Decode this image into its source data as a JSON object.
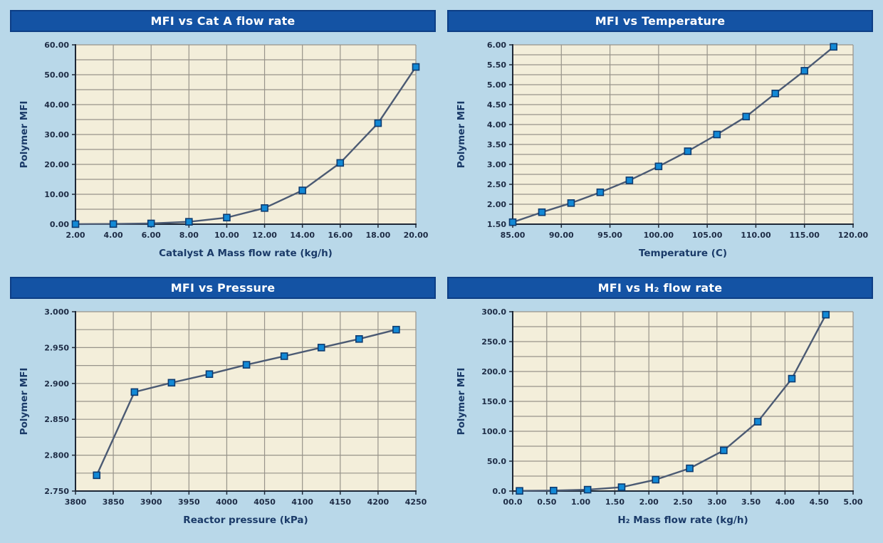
{
  "colors": {
    "page_bg": "#b9d8e9",
    "titlebar_bg": "#1453a4",
    "titlebar_border": "#0d3e85",
    "titlebar_text": "#ffffff",
    "plot_bg": "#f3eeda",
    "grid": "#97938a",
    "axis": "#1d2736",
    "line": "#4b5a73",
    "marker_fill": "#1289d6",
    "marker_stroke": "#0d3b70",
    "tick_text": "#1e2c45",
    "label_text": "#1a3a68"
  },
  "chart_data": [
    {
      "type": "line",
      "title": "MFI vs Cat A flow rate",
      "xlabel": "Catalyst A Mass flow rate (kg/h)",
      "ylabel": "Polymer MFI",
      "xlim": [
        2,
        20
      ],
      "ylim": [
        0,
        60
      ],
      "xtick_vals": [
        2,
        4,
        6,
        8,
        10,
        12,
        14,
        16,
        18,
        20
      ],
      "xtick_labels": [
        "2.00",
        "4.00",
        "6.00",
        "8.00",
        "10.00",
        "12.00",
        "14.00",
        "16.00",
        "18.00",
        "20.00"
      ],
      "ytick_vals": [
        0,
        10,
        20,
        30,
        40,
        50,
        60
      ],
      "ytick_labels": [
        "0.00",
        "10.00",
        "20.00",
        "30.00",
        "40.00",
        "50.00",
        "60.00"
      ],
      "grid_x_step": 2,
      "grid_y_step": 5,
      "grid": true,
      "legend": false,
      "points": [
        [
          2,
          0.02
        ],
        [
          4,
          0.06
        ],
        [
          6,
          0.25
        ],
        [
          8,
          0.8
        ],
        [
          10,
          2.2
        ],
        [
          12,
          5.4
        ],
        [
          14,
          11.3
        ],
        [
          16,
          20.5
        ],
        [
          18,
          33.8
        ],
        [
          20,
          52.6
        ]
      ]
    },
    {
      "type": "line",
      "title": "MFI vs Temperature",
      "xlabel": "Temperature (C)",
      "ylabel": "Polymer MFI",
      "xlim": [
        85,
        120
      ],
      "ylim": [
        1.5,
        6.0
      ],
      "xtick_vals": [
        85,
        90,
        95,
        100,
        105,
        110,
        115,
        120
      ],
      "xtick_labels": [
        "85.00",
        "90.00",
        "95.00",
        "100.00",
        "105.00",
        "110.00",
        "115.00",
        "120.00"
      ],
      "ytick_vals": [
        1.5,
        2.0,
        2.5,
        3.0,
        3.5,
        4.0,
        4.5,
        5.0,
        5.5,
        6.0
      ],
      "ytick_labels": [
        "1.50",
        "2.00",
        "2.50",
        "3.00",
        "3.50",
        "4.00",
        "4.50",
        "5.00",
        "5.50",
        "6.00"
      ],
      "grid_x_step": 5,
      "grid_y_step": 0.25,
      "grid": true,
      "legend": false,
      "points": [
        [
          85,
          1.55
        ],
        [
          88,
          1.8
        ],
        [
          91,
          2.03
        ],
        [
          94,
          2.3
        ],
        [
          97,
          2.6
        ],
        [
          100,
          2.95
        ],
        [
          103,
          3.33
        ],
        [
          106,
          3.75
        ],
        [
          109,
          4.2
        ],
        [
          112,
          4.78
        ],
        [
          115,
          5.35
        ],
        [
          118,
          5.95
        ]
      ]
    },
    {
      "type": "line",
      "title": "MFI vs Pressure",
      "xlabel": "Reactor pressure (kPa)",
      "ylabel": "Polymer MFI",
      "xlim": [
        3800,
        4250
      ],
      "ylim": [
        2.75,
        3.0
      ],
      "xtick_vals": [
        3800,
        3850,
        3900,
        3950,
        4000,
        4050,
        4100,
        4150,
        4200,
        4250
      ],
      "xtick_labels": [
        "3800",
        "3850",
        "3900",
        "3950",
        "4000",
        "4050",
        "4100",
        "4150",
        "4200",
        "4250"
      ],
      "ytick_vals": [
        2.75,
        2.8,
        2.85,
        2.9,
        2.95,
        3.0
      ],
      "ytick_labels": [
        "2.750",
        "2.800",
        "2.850",
        "2.900",
        "2.950",
        "3.000"
      ],
      "grid_x_step": 50,
      "grid_y_step": 0.025,
      "grid": true,
      "legend": false,
      "points": [
        [
          3828,
          2.772
        ],
        [
          3878,
          2.888
        ],
        [
          3927,
          2.901
        ],
        [
          3977,
          2.913
        ],
        [
          4026,
          2.926
        ],
        [
          4076,
          2.938
        ],
        [
          4125,
          2.95
        ],
        [
          4175,
          2.962
        ],
        [
          4224,
          2.975
        ]
      ]
    },
    {
      "type": "line",
      "title": "MFI vs H₂ flow rate",
      "xlabel": "H₂ Mass flow rate (kg/h)",
      "ylabel": "Polymer MFI",
      "xlim": [
        0,
        5
      ],
      "ylim": [
        0,
        300
      ],
      "xtick_vals": [
        0,
        0.5,
        1.0,
        1.5,
        2.0,
        2.5,
        3.0,
        3.5,
        4.0,
        4.5,
        5.0
      ],
      "xtick_labels": [
        "00.0",
        "0.50",
        "1.00",
        "1.50",
        "2.00",
        "2.50",
        "3.00",
        "3.50",
        "4.00",
        "4.50",
        "5.00"
      ],
      "ytick_vals": [
        0,
        50,
        100,
        150,
        200,
        250,
        300
      ],
      "ytick_labels": [
        "0.0",
        "50.0",
        "100.0",
        "150.0",
        "200.0",
        "250.0",
        "300.0"
      ],
      "grid_x_step": 0.5,
      "grid_y_step": 25,
      "grid": true,
      "legend": false,
      "points": [
        [
          0.1,
          0.3
        ],
        [
          0.6,
          0.8
        ],
        [
          1.1,
          2.3
        ],
        [
          1.6,
          6.5
        ],
        [
          2.1,
          19
        ],
        [
          2.6,
          38
        ],
        [
          3.1,
          68
        ],
        [
          3.6,
          116
        ],
        [
          4.1,
          188
        ],
        [
          4.6,
          295
        ]
      ]
    }
  ]
}
